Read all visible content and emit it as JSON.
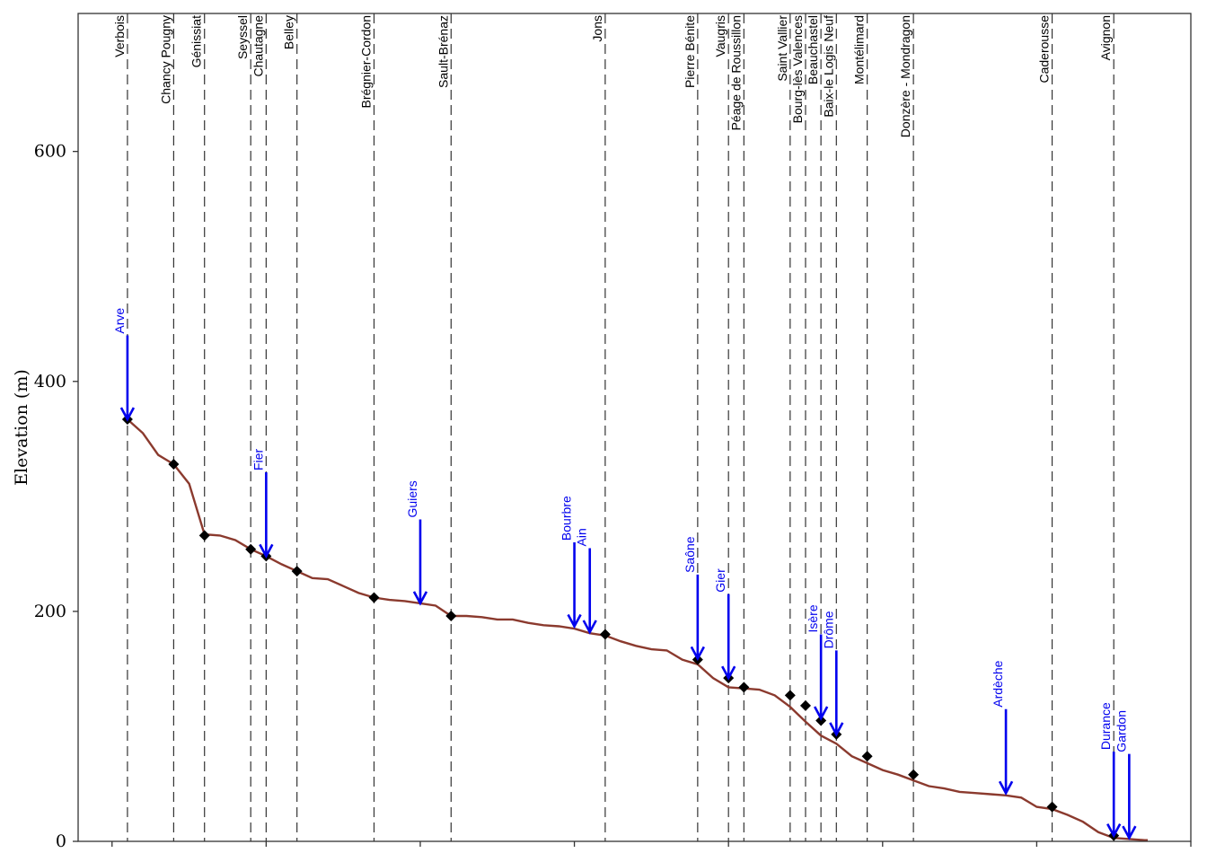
{
  "colors": {
    "profile": "#8b3a2e",
    "tributary": "#0000ee",
    "station_line": "#333333",
    "marker": "#000000",
    "frame": "#333333"
  },
  "chart_data": {
    "type": "line",
    "title": "",
    "xlabel": "",
    "ylabel": "Elevation (m)",
    "xlim": [
      -22,
      700
    ],
    "ylim": [
      0,
      720
    ],
    "y_ticks": [
      "0",
      "200",
      "400",
      "600"
    ],
    "x_ticks": [
      0,
      100,
      200,
      300,
      400,
      500,
      600,
      700
    ],
    "x_tick_labels_shown": false,
    "grid": false,
    "series": [
      {
        "type": "line",
        "x": [
          10,
          20,
          30,
          40,
          50,
          60,
          70,
          80,
          90,
          100,
          110,
          120,
          130,
          140,
          150,
          160,
          170,
          180,
          190,
          200,
          210,
          220,
          230,
          240,
          250,
          260,
          270,
          280,
          290,
          300,
          310,
          320,
          330,
          340,
          350,
          360,
          370,
          380,
          390,
          400,
          410,
          420,
          430,
          440,
          450,
          460,
          470,
          480,
          490,
          500,
          510,
          520,
          530,
          540,
          550,
          560,
          570,
          580,
          590,
          600,
          610,
          620,
          630,
          640,
          650,
          660,
          670,
          672
        ],
        "y": [
          367,
          355,
          336,
          328,
          311,
          267,
          266,
          262,
          254,
          248,
          241,
          235,
          229,
          228,
          222,
          216,
          212,
          210,
          209,
          207,
          205,
          196,
          196,
          195,
          193,
          193,
          190,
          188,
          187,
          185,
          181,
          179,
          174,
          170,
          167,
          166,
          158,
          154,
          142,
          134,
          133,
          132,
          127,
          117,
          104,
          92,
          85,
          74,
          68,
          62,
          58,
          53,
          48,
          46,
          43,
          42,
          41,
          40,
          38,
          30,
          28,
          23,
          17,
          8,
          3,
          2,
          1,
          1
        ]
      },
      {
        "type": "scatter",
        "marker": "diamond",
        "x": [
          10,
          40,
          60,
          90,
          100,
          120,
          170,
          220,
          320,
          380,
          400,
          410,
          440,
          450,
          460,
          470,
          490,
          520,
          610,
          650
        ],
        "y": [
          367,
          328,
          266,
          254,
          248,
          235,
          212,
          196,
          180,
          158,
          142,
          134,
          127,
          118,
          105,
          93,
          74,
          58,
          30,
          5
        ]
      }
    ],
    "stations": [
      {
        "name": "Verbois",
        "x": 10
      },
      {
        "name": "Chancy Pougny",
        "x": 40
      },
      {
        "name": "Génissiat",
        "x": 60
      },
      {
        "name": "Seyssel",
        "x": 90
      },
      {
        "name": "Chautagne",
        "x": 100
      },
      {
        "name": "Belley",
        "x": 120
      },
      {
        "name": "Brégnier-Cordon",
        "x": 170
      },
      {
        "name": "Sault-Brénaz",
        "x": 220
      },
      {
        "name": "Jons",
        "x": 320
      },
      {
        "name": "Pierre Bénite",
        "x": 380
      },
      {
        "name": "Vaugris",
        "x": 400
      },
      {
        "name": "Péage de Roussillon",
        "x": 410
      },
      {
        "name": "Saint Vallier",
        "x": 440
      },
      {
        "name": "Bourg-lès Valences",
        "x": 450
      },
      {
        "name": "Beauchastel",
        "x": 460
      },
      {
        "name": "Baix-le Logis Neuf",
        "x": 470
      },
      {
        "name": "Montélimard",
        "x": 490
      },
      {
        "name": "Donzère - Mondragon",
        "x": 520
      },
      {
        "name": "Caderousse",
        "x": 610
      },
      {
        "name": "Avignon",
        "x": 650
      }
    ],
    "tributaries": [
      {
        "name": "Arve",
        "x": 10,
        "y_start": 440,
        "y_end": 367
      },
      {
        "name": "Fier",
        "x": 100,
        "y_start": 321,
        "y_end": 248
      },
      {
        "name": "Guiers",
        "x": 200,
        "y_start": 280,
        "y_end": 207
      },
      {
        "name": "Bourbre",
        "x": 300,
        "y_start": 260,
        "y_end": 187
      },
      {
        "name": "Ain",
        "x": 310,
        "y_start": 255,
        "y_end": 182
      },
      {
        "name": "Saône",
        "x": 380,
        "y_start": 232,
        "y_end": 159
      },
      {
        "name": "Gier",
        "x": 400,
        "y_start": 215,
        "y_end": 142
      },
      {
        "name": "Isère",
        "x": 460,
        "y_start": 180,
        "y_end": 107
      },
      {
        "name": "Drôme",
        "x": 470,
        "y_start": 166,
        "y_end": 93
      },
      {
        "name": "Ardèche",
        "x": 580,
        "y_start": 115,
        "y_end": 42
      },
      {
        "name": "Durance",
        "x": 650,
        "y_start": 78,
        "y_end": 5
      },
      {
        "name": "Gardon",
        "x": 660,
        "y_start": 76,
        "y_end": 3
      }
    ]
  }
}
